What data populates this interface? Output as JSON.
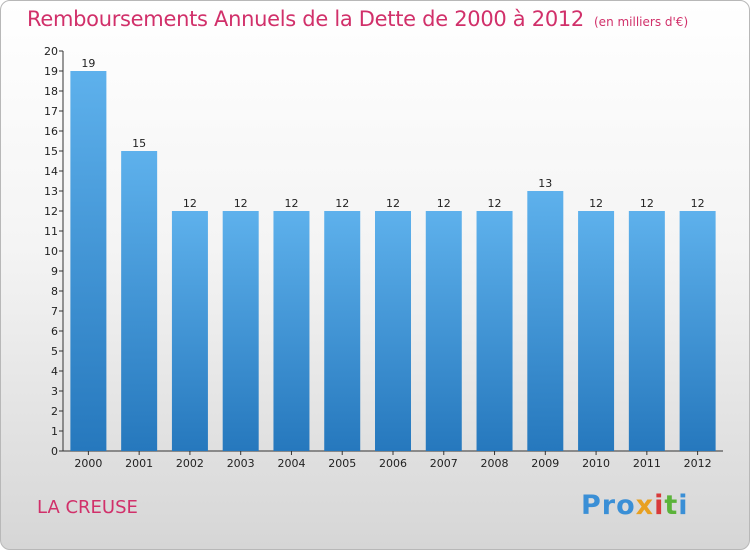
{
  "title": "Remboursements Annuels de la Dette de 2000 à 2012",
  "subtitle": "(en milliers d'€)",
  "commune": "LA CREUSE",
  "logo": {
    "text": "Proxiti",
    "parts": [
      "Pro",
      "x",
      "i",
      "t",
      "i"
    ]
  },
  "colors": {
    "title": "#d1306a",
    "bar_light": "#5aade8",
    "bar_dark": "#2a7fc4"
  },
  "chart_data": {
    "type": "bar",
    "title": "Remboursements Annuels de la Dette de 2000 à 2012",
    "ylabel": "en milliers d'€",
    "xlabel": "",
    "categories": [
      "2000",
      "2001",
      "2002",
      "2003",
      "2004",
      "2005",
      "2006",
      "2007",
      "2008",
      "2009",
      "2010",
      "2011",
      "2012"
    ],
    "values": [
      19,
      15,
      12,
      12,
      12,
      12,
      12,
      12,
      12,
      13,
      12,
      12,
      12
    ],
    "ylim": [
      0,
      20
    ],
    "yticks": [
      0,
      1,
      2,
      3,
      4,
      5,
      6,
      7,
      8,
      9,
      10,
      11,
      12,
      13,
      14,
      15,
      16,
      17,
      18,
      19,
      20
    ],
    "grid": false
  }
}
